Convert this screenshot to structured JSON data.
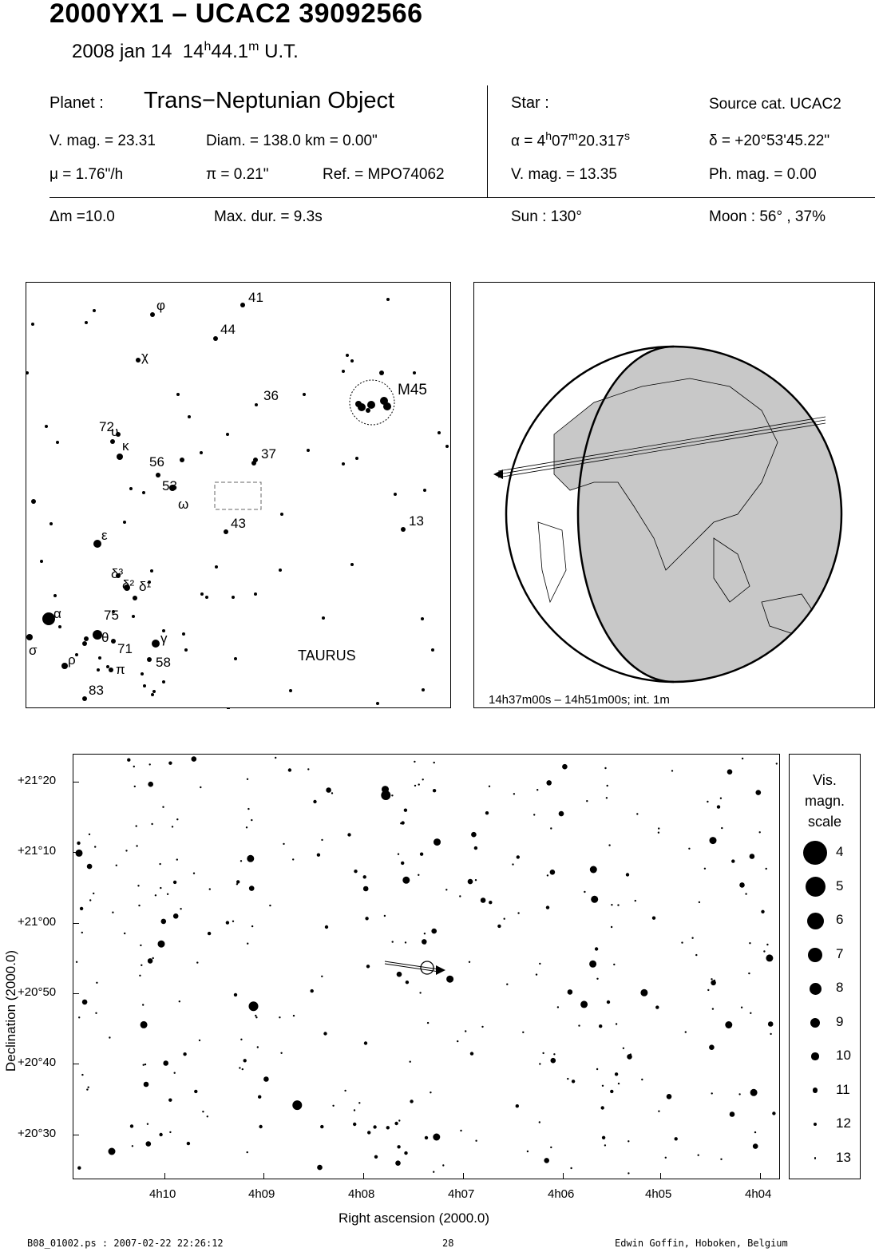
{
  "header": {
    "title": "2000YX1  –  UCAC2 39092566",
    "date": "2008 jan 14",
    "time_h": "14",
    "time_h_sup": "h",
    "time_m": "44.1",
    "time_m_sup": "m",
    "time_suffix": "U.T."
  },
  "planet": {
    "label": "Planet :",
    "type": "Trans−Neptunian Object",
    "vmag": "V. mag. = 23.31",
    "diam": "Diam. = 138.0 km = 0.00\"",
    "mu": "μ =  1.76\"/h",
    "pi": "π =  0.21\"",
    "ref": "Ref. = MPO74062"
  },
  "star": {
    "label": "Star :",
    "source": "Source cat.  UCAC2",
    "alpha_prefix": "α =  4",
    "alpha_h": "h",
    "alpha_mid": "07",
    "alpha_m": "m",
    "alpha_sec": "20.317",
    "alpha_s": "s",
    "delta": "δ = +20°53'45.22\"",
    "vmag": "V. mag. = 13.35",
    "phmag": "Ph. mag. =  0.00"
  },
  "conditions": {
    "dm": "Δm =10.0",
    "maxdur": "Max. dur. = 9.3s",
    "sun": "Sun : 130°",
    "moon": "Moon :  56° , 37%"
  },
  "finder": {
    "constellation": "TAURUS",
    "cluster": "M45",
    "labels": [
      {
        "t": "φ"
      },
      {
        "t": "41"
      },
      {
        "t": "44"
      },
      {
        "t": "χ"
      },
      {
        "t": "36"
      },
      {
        "t": "72"
      },
      {
        "t": "υ"
      },
      {
        "t": "κ"
      },
      {
        "t": "56"
      },
      {
        "t": "37"
      },
      {
        "t": "53"
      },
      {
        "t": "ω"
      },
      {
        "t": "43"
      },
      {
        "t": "13"
      },
      {
        "t": "ε"
      },
      {
        "t": "δ³"
      },
      {
        "t": "δ²"
      },
      {
        "t": "δ¹"
      },
      {
        "t": "α"
      },
      {
        "t": "75"
      },
      {
        "t": "θ"
      },
      {
        "t": "71"
      },
      {
        "t": "γ"
      },
      {
        "t": "σ"
      },
      {
        "t": "ρ"
      },
      {
        "t": "π"
      },
      {
        "t": "58"
      },
      {
        "t": "83"
      }
    ]
  },
  "globe": {
    "caption": "14h37m00s – 14h51m00s; int.  1m"
  },
  "starchart": {
    "ylabel": "Declination (2000.0)",
    "xlabel": "Right ascension (2000.0)",
    "dec_ticks": [
      "+21°20",
      "+21°10",
      "+21°00",
      "+20°50",
      "+20°40",
      "+20°30"
    ],
    "ra_ticks": [
      "4h10",
      "4h09",
      "4h08",
      "4h07",
      "4h06",
      "4h05",
      "4h04"
    ]
  },
  "scale": {
    "title1": "Vis.",
    "title2": "magn.",
    "title3": "scale",
    "mags": [
      "4",
      "5",
      "6",
      "7",
      "8",
      "9",
      "10",
      "11",
      "12",
      "13"
    ]
  },
  "footer": {
    "file": "B08_01002.ps : 2007-02-22 22:26:12",
    "page": "28",
    "author": "Edwin Goffin, Hoboken, Belgium"
  }
}
